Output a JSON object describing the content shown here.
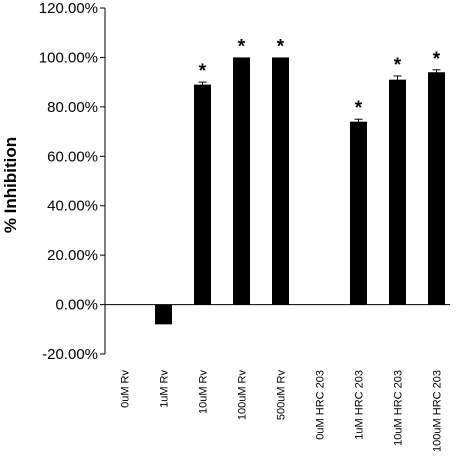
{
  "chart_data": {
    "type": "bar",
    "title": "",
    "xlabel": "",
    "ylabel": "% Inhibition",
    "ylim": [
      -20,
      120
    ],
    "yticks": [
      -20,
      0,
      20,
      40,
      60,
      80,
      100,
      120
    ],
    "ytick_labels": [
      "-20.00%",
      "0.00%",
      "20.00%",
      "40.00%",
      "60.00%",
      "80.00%",
      "100.00%",
      "120.00%"
    ],
    "categories": [
      "0uM Rv",
      "1uM Rv",
      "10uM Rv",
      "100uM Rv",
      "500uM Rv",
      "0uM HRC 203",
      "1uM HRC 203",
      "10uM HRC 203",
      "100uM HRC 203"
    ],
    "values": [
      0,
      -8,
      89,
      100,
      100,
      0,
      74,
      91,
      94
    ],
    "errors": [
      0,
      0,
      1,
      0,
      0,
      0,
      1,
      1.5,
      1
    ],
    "significance": [
      "",
      "",
      "*",
      "*",
      "*",
      "",
      "*",
      "*",
      "*"
    ],
    "bar_color": "#000000",
    "grid": false,
    "legend": "none"
  }
}
